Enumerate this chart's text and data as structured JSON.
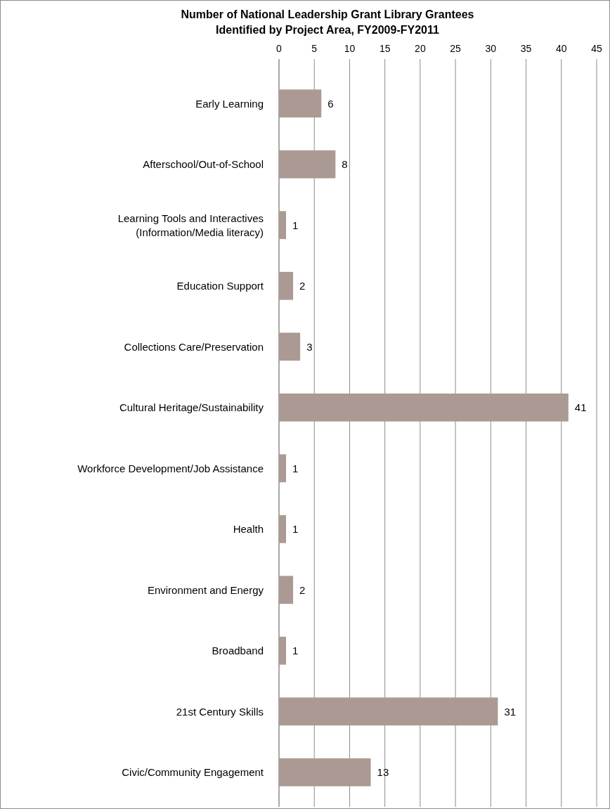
{
  "chart_data": {
    "type": "bar",
    "orientation": "horizontal",
    "title": "Number of National Leadership Grant Library Grantees\nIdentified by Project Area, FY2009-FY2011",
    "categories": [
      "Early Learning",
      "Afterschool/Out-of-School",
      "Learning Tools and Interactives\n(Information/Media literacy)",
      "Education Support",
      "Collections Care/Preservation",
      "Cultural Heritage/Sustainability",
      "Workforce Development/Job Assistance",
      "Health",
      "Environment and Energy",
      "Broadband",
      "21st Century Skills",
      "Civic/Community Engagement"
    ],
    "values": [
      6,
      8,
      1,
      2,
      3,
      41,
      1,
      1,
      2,
      1,
      31,
      13
    ],
    "color": "#ab9a93",
    "xlim": [
      0,
      45
    ],
    "xticks": [
      0,
      5,
      10,
      15,
      20,
      25,
      30,
      35,
      40,
      45
    ],
    "grid": "x",
    "data_labels": true
  }
}
